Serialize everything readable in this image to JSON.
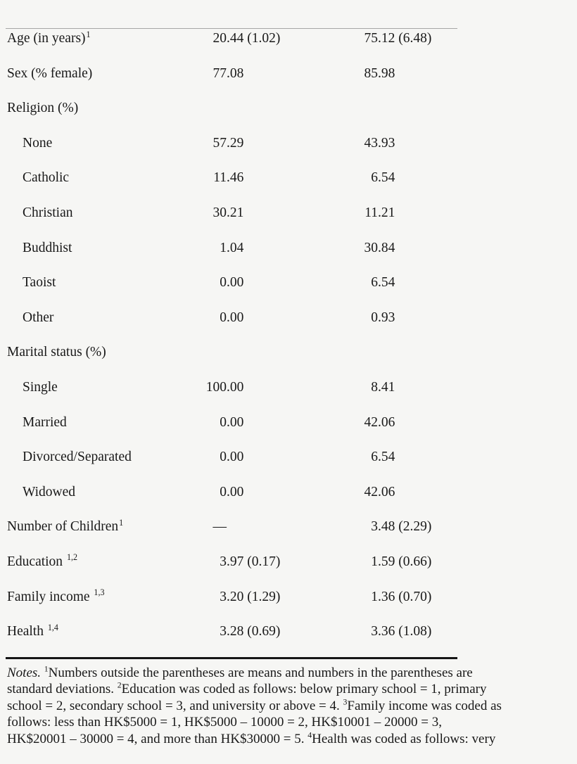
{
  "colors": {
    "background": "#f6f6f4",
    "text": "#191919",
    "thin_rule": "#a6a6a6",
    "thick_rule": "#151515"
  },
  "table": {
    "rows": [
      {
        "label": "Age (in years)",
        "sup": "1",
        "indent": false,
        "col1": "20.44 (1.02)",
        "col2": "75.12 (6.48)"
      },
      {
        "label": "Sex (% female)",
        "sup": "",
        "indent": false,
        "col1": "77.08",
        "col2": "85.98"
      },
      {
        "label": "Religion (%)",
        "sup": "",
        "indent": false,
        "col1": "",
        "col2": ""
      },
      {
        "label": "None",
        "sup": "",
        "indent": true,
        "col1": "57.29",
        "col2": "43.93"
      },
      {
        "label": "Catholic",
        "sup": "",
        "indent": true,
        "col1": "11.46",
        "col2": "6.54"
      },
      {
        "label": "Christian",
        "sup": "",
        "indent": true,
        "col1": "30.21",
        "col2": "11.21"
      },
      {
        "label": "Buddhist",
        "sup": "",
        "indent": true,
        "col1": "1.04",
        "col2": "30.84"
      },
      {
        "label": "Taoist",
        "sup": "",
        "indent": true,
        "col1": "0.00",
        "col2": "6.54"
      },
      {
        "label": "Other",
        "sup": "",
        "indent": true,
        "col1": "0.00",
        "col2": "0.93"
      },
      {
        "label": "Marital status (%)",
        "sup": "",
        "indent": false,
        "col1": "",
        "col2": ""
      },
      {
        "label": "Single",
        "sup": "",
        "indent": true,
        "col1": "100.00",
        "col2": "8.41"
      },
      {
        "label": "Married",
        "sup": "",
        "indent": true,
        "col1": "0.00",
        "col2": "42.06"
      },
      {
        "label": "Divorced/Separated",
        "sup": "",
        "indent": true,
        "col1": "0.00",
        "col2": "6.54"
      },
      {
        "label": "Widowed",
        "sup": "",
        "indent": true,
        "col1": "0.00",
        "col2": "42.06"
      },
      {
        "label": "Number of Children",
        "sup": "1",
        "indent": false,
        "col1": "—",
        "col2": "3.48 (2.29)"
      },
      {
        "label": "Education ",
        "sup": "1,2",
        "indent": false,
        "col1": "3.97 (0.17)",
        "col2": "1.59 (0.66)"
      },
      {
        "label": "Family income ",
        "sup": "1,3",
        "indent": false,
        "col1": "3.20 (1.29)",
        "col2": "1.36 (0.70)"
      },
      {
        "label": "Health ",
        "sup": "1,4",
        "indent": false,
        "col1": "3.28 (0.69)",
        "col2": "3.36 (1.08)"
      }
    ]
  },
  "notes": {
    "lines": [
      [
        {
          "i": "Notes. "
        },
        {
          "s": "1"
        },
        {
          "t": "Numbers outside the parentheses are means and numbers in the parentheses are"
        }
      ],
      [
        {
          "t": "standard deviations. "
        },
        {
          "s": "2"
        },
        {
          "t": "Education was coded as follows: below primary school = 1, primary"
        }
      ],
      [
        {
          "t": "school = 2, secondary school = 3, and university or above = 4. "
        },
        {
          "s": "3"
        },
        {
          "t": "Family income was coded as"
        }
      ],
      [
        {
          "t": "follows: less than HK$5000 = 1, HK$5000 – 10000 = 2, HK$10001 – 20000 = 3,"
        }
      ],
      [
        {
          "t": "HK$20001 – 30000 = 4, and more than HK$30000 = 5. "
        },
        {
          "s": "4"
        },
        {
          "t": "Health was coded as follows: very"
        }
      ]
    ]
  }
}
